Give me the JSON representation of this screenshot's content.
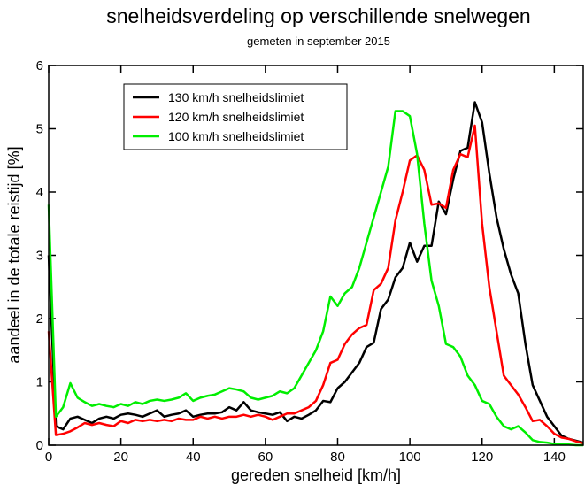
{
  "chart_data": {
    "type": "line",
    "title": "snelheidsverdeling op verschillende snelwegen",
    "subtitle": "gemeten in september 2015",
    "x_label": "gereden snelheid [km/h]",
    "y_label": "aandeel in de totale reistijd [%]",
    "xlim": [
      0,
      148
    ],
    "ylim": [
      0,
      6
    ],
    "xticks": [
      0,
      20,
      40,
      60,
      80,
      100,
      120,
      140
    ],
    "yticks": [
      0,
      1,
      2,
      3,
      4,
      5,
      6
    ],
    "legend": "upper left",
    "x": [
      0,
      2,
      4,
      6,
      8,
      10,
      12,
      14,
      16,
      18,
      20,
      22,
      24,
      26,
      28,
      30,
      32,
      34,
      36,
      38,
      40,
      42,
      44,
      46,
      48,
      50,
      52,
      54,
      56,
      58,
      60,
      62,
      64,
      66,
      68,
      70,
      72,
      74,
      76,
      78,
      80,
      82,
      84,
      86,
      88,
      90,
      92,
      94,
      96,
      98,
      100,
      102,
      104,
      106,
      108,
      110,
      112,
      114,
      116,
      118,
      120,
      122,
      124,
      126,
      128,
      130,
      132,
      134,
      136,
      138,
      140,
      142,
      144,
      146,
      148
    ],
    "series": [
      {
        "name": "130 km/h snelheidslimiet",
        "color": "#000000",
        "values": [
          3.0,
          0.3,
          0.25,
          0.42,
          0.45,
          0.4,
          0.35,
          0.42,
          0.45,
          0.42,
          0.48,
          0.5,
          0.48,
          0.45,
          0.5,
          0.55,
          0.45,
          0.48,
          0.5,
          0.55,
          0.45,
          0.48,
          0.5,
          0.5,
          0.52,
          0.6,
          0.55,
          0.68,
          0.55,
          0.52,
          0.5,
          0.48,
          0.52,
          0.38,
          0.45,
          0.42,
          0.48,
          0.55,
          0.7,
          0.68,
          0.9,
          1.0,
          1.15,
          1.3,
          1.55,
          1.62,
          2.15,
          2.3,
          2.65,
          2.8,
          3.2,
          2.9,
          3.15,
          3.15,
          3.85,
          3.65,
          4.2,
          4.65,
          4.7,
          5.42,
          5.1,
          4.3,
          3.6,
          3.1,
          2.7,
          2.4,
          1.6,
          0.95,
          0.7,
          0.45,
          0.3,
          0.15,
          0.1,
          0.07,
          0.04
        ]
      },
      {
        "name": "120 km/h snelheidslimiet",
        "color": "#ff0000",
        "values": [
          1.8,
          0.16,
          0.18,
          0.22,
          0.28,
          0.35,
          0.32,
          0.35,
          0.32,
          0.3,
          0.38,
          0.35,
          0.4,
          0.38,
          0.4,
          0.38,
          0.4,
          0.38,
          0.42,
          0.4,
          0.4,
          0.45,
          0.42,
          0.45,
          0.42,
          0.45,
          0.45,
          0.48,
          0.45,
          0.48,
          0.45,
          0.4,
          0.45,
          0.5,
          0.5,
          0.55,
          0.6,
          0.7,
          0.95,
          1.3,
          1.35,
          1.6,
          1.75,
          1.85,
          1.9,
          2.45,
          2.55,
          2.8,
          3.55,
          4.0,
          4.5,
          4.58,
          4.35,
          3.8,
          3.82,
          3.75,
          4.35,
          4.6,
          4.55,
          5.05,
          3.5,
          2.5,
          1.8,
          1.1,
          0.95,
          0.8,
          0.6,
          0.38,
          0.4,
          0.3,
          0.18,
          0.12,
          0.1,
          0.06,
          0.03
        ]
      },
      {
        "name": "100 km/h snelheidslimiet",
        "color": "#00ee00",
        "values": [
          3.8,
          0.45,
          0.6,
          0.98,
          0.75,
          0.68,
          0.62,
          0.65,
          0.62,
          0.6,
          0.65,
          0.62,
          0.68,
          0.65,
          0.7,
          0.72,
          0.7,
          0.72,
          0.75,
          0.82,
          0.7,
          0.75,
          0.78,
          0.8,
          0.85,
          0.9,
          0.88,
          0.85,
          0.75,
          0.72,
          0.75,
          0.78,
          0.85,
          0.82,
          0.9,
          1.1,
          1.3,
          1.5,
          1.8,
          2.35,
          2.2,
          2.4,
          2.5,
          2.8,
          3.2,
          3.6,
          4.0,
          4.4,
          5.28,
          5.28,
          5.2,
          4.6,
          3.5,
          2.6,
          2.2,
          1.6,
          1.55,
          1.4,
          1.1,
          0.95,
          0.7,
          0.65,
          0.45,
          0.3,
          0.25,
          0.3,
          0.2,
          0.08,
          0.05,
          0.04,
          0.02,
          0.01,
          0.01,
          0,
          0
        ]
      }
    ]
  }
}
